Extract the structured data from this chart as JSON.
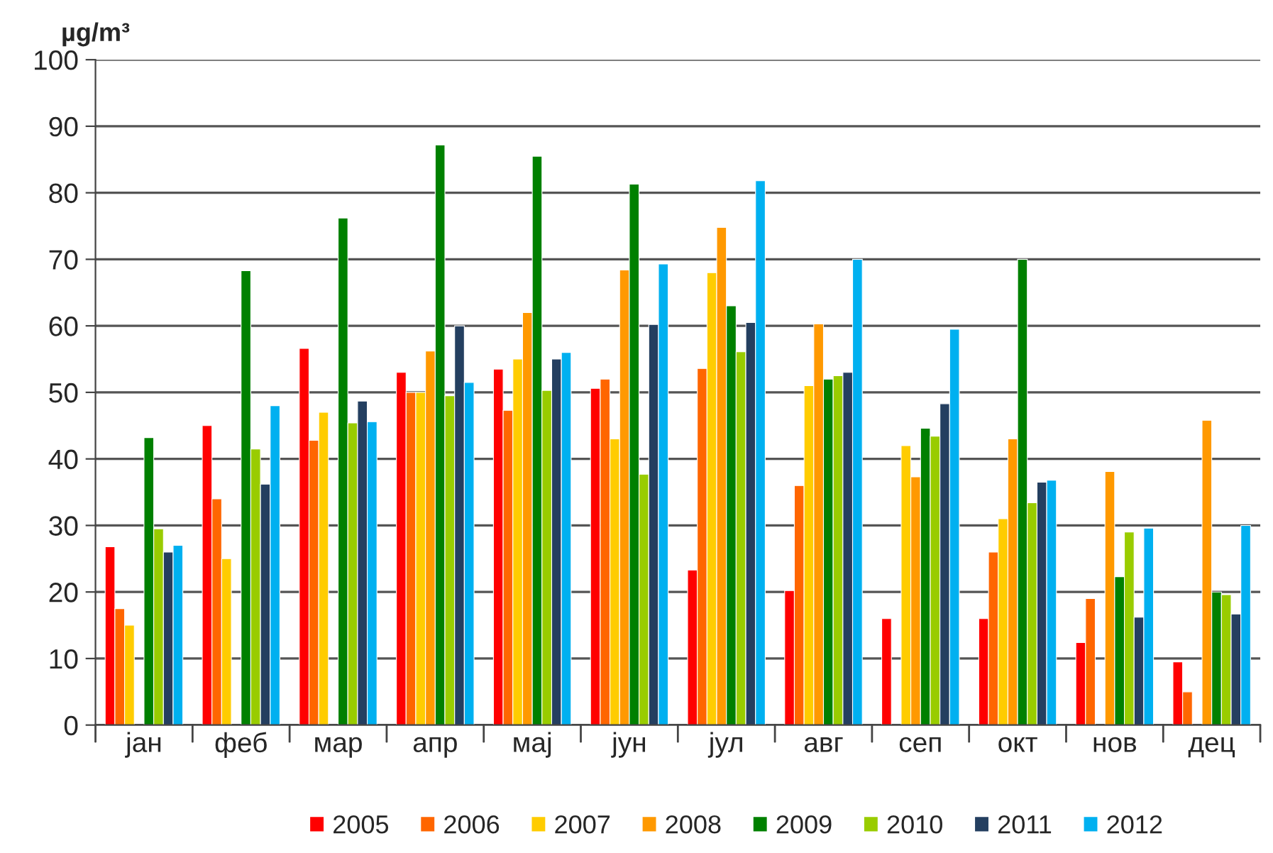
{
  "chart_data": {
    "type": "bar",
    "ylabel": "µg/m³",
    "categories": [
      "јан",
      "феб",
      "мар",
      "апр",
      "мај",
      "јун",
      "јул",
      "авг",
      "сеп",
      "окт",
      "нов",
      "дец"
    ],
    "series": [
      {
        "name": "2005",
        "color": "#ff0000",
        "values": [
          26.8,
          45,
          56.6,
          53,
          53.5,
          50.6,
          23.3,
          20.2,
          16,
          16,
          12.4,
          9.5
        ]
      },
      {
        "name": "2006",
        "color": "#ff6600",
        "values": [
          17.5,
          34,
          42.8,
          50,
          47.3,
          52,
          53.6,
          36,
          null,
          26,
          19,
          5
        ]
      },
      {
        "name": "2007",
        "color": "#ffcc00",
        "values": [
          15,
          25,
          47,
          50,
          55,
          43,
          68,
          51,
          42,
          31,
          null,
          null
        ]
      },
      {
        "name": "2008",
        "color": "#ff9900",
        "values": [
          null,
          null,
          null,
          56.2,
          62,
          68.4,
          74.8,
          60.3,
          37.3,
          43,
          38.1,
          45.8
        ]
      },
      {
        "name": "2009",
        "color": "#008000",
        "values": [
          43.2,
          68.3,
          76.2,
          87.2,
          85.5,
          81.3,
          63,
          52,
          44.6,
          70,
          22.3,
          20
        ]
      },
      {
        "name": "2010",
        "color": "#99cc00",
        "values": [
          29.5,
          41.5,
          45.4,
          49.5,
          50.3,
          37.7,
          56.1,
          52.5,
          43.4,
          33.4,
          29,
          19.6
        ]
      },
      {
        "name": "2011",
        "color": "#243f60",
        "values": [
          26,
          36.2,
          48.7,
          60,
          55,
          60.2,
          60.5,
          53,
          48.3,
          36.5,
          16.2,
          16.7
        ]
      },
      {
        "name": "2012",
        "color": "#00b0f0",
        "values": [
          27,
          48,
          45.6,
          51.5,
          56,
          69.3,
          81.8,
          70,
          59.5,
          36.8,
          29.6,
          30
        ]
      }
    ],
    "ylim": [
      0,
      100
    ],
    "yticks": [
      0,
      10,
      20,
      30,
      40,
      50,
      60,
      70,
      80,
      90,
      100
    ],
    "grid": "y",
    "legend": "bottom"
  }
}
